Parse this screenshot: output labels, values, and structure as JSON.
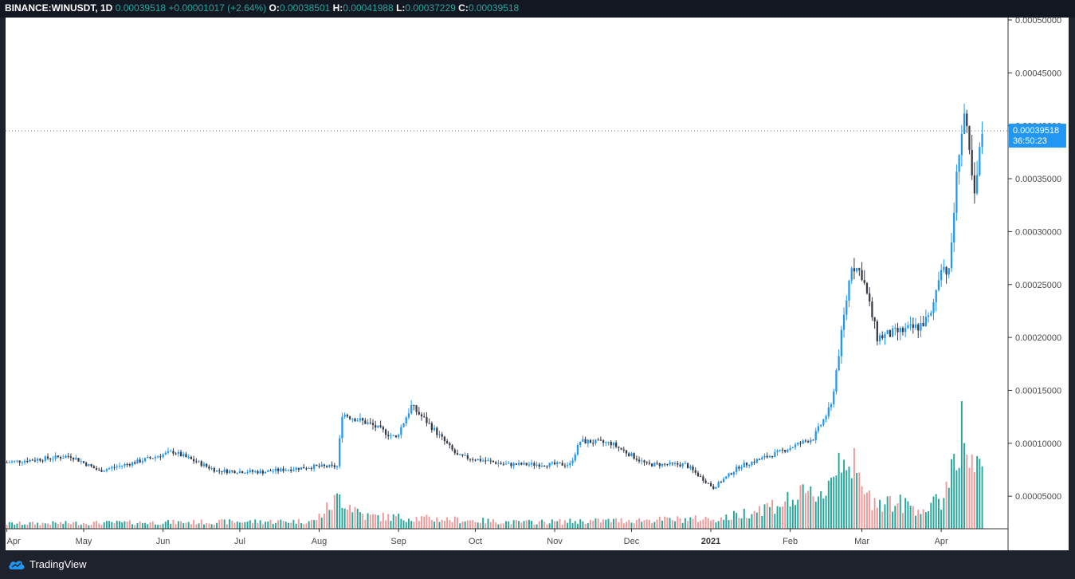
{
  "header": {
    "symbol": "BINANCE:WINUSDT, 1D",
    "last": "0.00039518",
    "change": "+0.00001017 (+2.64%)",
    "open_label": "O:",
    "open": "0.00038501",
    "high_label": "H:",
    "high": "0.00041988",
    "low_label": "L:",
    "low": "0.00037229",
    "close_label": "C:",
    "close": "0.00039518"
  },
  "price_tag": {
    "price": "0.00039518",
    "countdown": "36:50:23",
    "color": "#2196f3"
  },
  "footer": {
    "brand": "TradingView"
  },
  "colors": {
    "up": "#2196f3",
    "down": "#363a45",
    "vol_up": "#26a69a",
    "vol_down": "#ef9a9a"
  },
  "chart_data": {
    "type": "candlestick",
    "y_axis": {
      "min": 2e-05,
      "max": 0.0005,
      "ticks": [
        "0.00005000",
        "0.00010000",
        "0.00015000",
        "0.00020000",
        "0.00025000",
        "0.00030000",
        "0.00035000",
        "0.00040000",
        "0.00045000",
        "0.00050000"
      ]
    },
    "x_axis": {
      "labels": [
        "Apr",
        "May",
        "Jun",
        "Jul",
        "Aug",
        "Sep",
        "Oct",
        "Nov",
        "Dec",
        "2021",
        "Feb",
        "Mar",
        "Apr"
      ]
    },
    "last_price": 0.00039518,
    "keypoints": [
      {
        "day": 0,
        "price": 8.2e-05
      },
      {
        "day": 25,
        "price": 8.8e-05
      },
      {
        "day": 36,
        "price": 7.4e-05
      },
      {
        "day": 50,
        "price": 8.2e-05
      },
      {
        "day": 65,
        "price": 9.2e-05
      },
      {
        "day": 82,
        "price": 7.4e-05
      },
      {
        "day": 100,
        "price": 7.3e-05
      },
      {
        "day": 120,
        "price": 7.8e-05
      },
      {
        "day": 129,
        "price": 7.8e-05
      },
      {
        "day": 131,
        "price": 0.000128
      },
      {
        "day": 142,
        "price": 0.000118
      },
      {
        "day": 152,
        "price": 0.000105
      },
      {
        "day": 158,
        "price": 0.000135
      },
      {
        "day": 165,
        "price": 0.000118
      },
      {
        "day": 176,
        "price": 8.8e-05
      },
      {
        "day": 195,
        "price": 8e-05
      },
      {
        "day": 220,
        "price": 8e-05
      },
      {
        "day": 224,
        "price": 0.000102
      },
      {
        "day": 236,
        "price": 0.0001
      },
      {
        "day": 250,
        "price": 8e-05
      },
      {
        "day": 265,
        "price": 8e-05
      },
      {
        "day": 276,
        "price": 5.8e-05
      },
      {
        "day": 286,
        "price": 7.8e-05
      },
      {
        "day": 300,
        "price": 9e-05
      },
      {
        "day": 315,
        "price": 0.000105
      },
      {
        "day": 322,
        "price": 0.000135
      },
      {
        "day": 330,
        "price": 0.00027
      },
      {
        "day": 334,
        "price": 0.00026
      },
      {
        "day": 340,
        "price": 0.0002
      },
      {
        "day": 356,
        "price": 0.00021
      },
      {
        "day": 361,
        "price": 0.00022
      },
      {
        "day": 365,
        "price": 0.00027
      },
      {
        "day": 368,
        "price": 0.00026
      },
      {
        "day": 372,
        "price": 0.00038
      },
      {
        "day": 374,
        "price": 0.00041
      },
      {
        "day": 378,
        "price": 0.00033
      },
      {
        "day": 381,
        "price": 0.000395
      }
    ],
    "volume_keypoints": [
      {
        "day": 0,
        "vol": 0.04
      },
      {
        "day": 120,
        "vol": 0.06
      },
      {
        "day": 130,
        "vol": 0.25
      },
      {
        "day": 140,
        "vol": 0.1
      },
      {
        "day": 200,
        "vol": 0.05
      },
      {
        "day": 280,
        "vol": 0.08
      },
      {
        "day": 320,
        "vol": 0.3
      },
      {
        "day": 327,
        "vol": 0.66
      },
      {
        "day": 335,
        "vol": 0.25
      },
      {
        "day": 360,
        "vol": 0.15
      },
      {
        "day": 366,
        "vol": 0.25
      },
      {
        "day": 373,
        "vol": 0.85
      },
      {
        "day": 376,
        "vol": 0.5
      },
      {
        "day": 381,
        "vol": 0.4
      }
    ]
  }
}
